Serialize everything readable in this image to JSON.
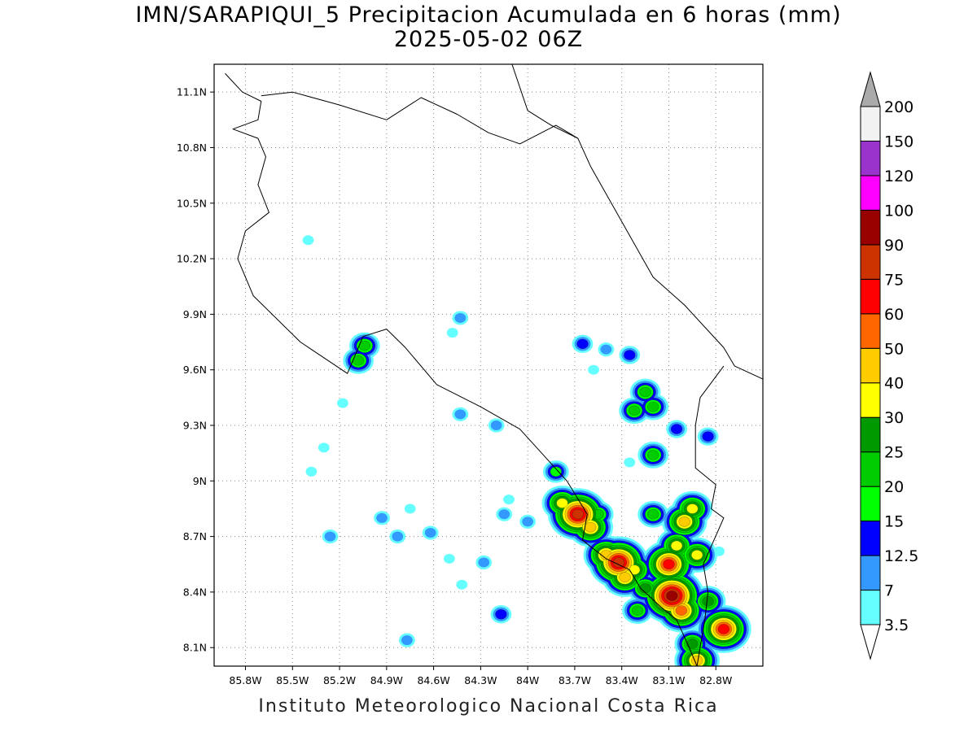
{
  "title": {
    "line1": "IMN/SARAPIQUI_5 Precipitacion Acumulada en 6 horas (mm)",
    "line2": "2025-05-02 06Z"
  },
  "footer": "Instituto Meteorologico Nacional Costa Rica",
  "map": {
    "lon_range": [
      -86.0,
      -82.5
    ],
    "lat_range": [
      8.0,
      11.25
    ],
    "lon_ticks": [
      {
        "value": -85.8,
        "label": "85.8W"
      },
      {
        "value": -85.5,
        "label": "85.5W"
      },
      {
        "value": -85.2,
        "label": "85.2W"
      },
      {
        "value": -84.9,
        "label": "84.9W"
      },
      {
        "value": -84.6,
        "label": "84.6W"
      },
      {
        "value": -84.3,
        "label": "84.3W"
      },
      {
        "value": -84.0,
        "label": "84W"
      },
      {
        "value": -83.7,
        "label": "83.7W"
      },
      {
        "value": -83.4,
        "label": "83.4W"
      },
      {
        "value": -83.1,
        "label": "83.1W"
      },
      {
        "value": -82.8,
        "label": "82.8W"
      }
    ],
    "lat_ticks": [
      {
        "value": 8.1,
        "label": "8.1N"
      },
      {
        "value": 8.4,
        "label": "8.4N"
      },
      {
        "value": 8.7,
        "label": "8.7N"
      },
      {
        "value": 9.0,
        "label": "9N"
      },
      {
        "value": 9.3,
        "label": "9.3N"
      },
      {
        "value": 9.6,
        "label": "9.6N"
      },
      {
        "value": 9.9,
        "label": "9.9N"
      },
      {
        "value": 10.2,
        "label": "10.2N"
      },
      {
        "value": 10.5,
        "label": "10.5N"
      },
      {
        "value": 10.8,
        "label": "10.8N"
      },
      {
        "value": 11.1,
        "label": "11.1N"
      }
    ],
    "grid": "dotted",
    "coastline": [
      {
        "lon": -85.93,
        "lat": 11.2
      },
      {
        "lon": -85.82,
        "lat": 11.1
      },
      {
        "lon": -85.7,
        "lat": 11.05
      },
      {
        "lon": -85.72,
        "lat": 10.95
      },
      {
        "lon": -85.88,
        "lat": 10.9
      },
      {
        "lon": -85.72,
        "lat": 10.85
      },
      {
        "lon": -85.67,
        "lat": 10.75
      },
      {
        "lon": -85.72,
        "lat": 10.6
      },
      {
        "lon": -85.65,
        "lat": 10.45
      },
      {
        "lon": -85.8,
        "lat": 10.35
      },
      {
        "lon": -85.85,
        "lat": 10.2
      },
      {
        "lon": -85.75,
        "lat": 10.0
      },
      {
        "lon": -85.45,
        "lat": 9.75
      },
      {
        "lon": -85.15,
        "lat": 9.58
      },
      {
        "lon": -85.05,
        "lat": 9.78
      },
      {
        "lon": -84.9,
        "lat": 9.82
      },
      {
        "lon": -84.78,
        "lat": 9.72
      },
      {
        "lon": -84.58,
        "lat": 9.52
      },
      {
        "lon": -84.3,
        "lat": 9.4
      },
      {
        "lon": -84.05,
        "lat": 9.28
      },
      {
        "lon": -83.75,
        "lat": 9.0
      },
      {
        "lon": -83.62,
        "lat": 8.82
      },
      {
        "lon": -83.65,
        "lat": 8.68
      },
      {
        "lon": -83.5,
        "lat": 8.58
      },
      {
        "lon": -83.35,
        "lat": 8.52
      },
      {
        "lon": -83.28,
        "lat": 8.42
      },
      {
        "lon": -83.15,
        "lat": 8.32
      },
      {
        "lon": -83.05,
        "lat": 8.25
      },
      {
        "lon": -82.97,
        "lat": 8.1
      },
      {
        "lon": -82.92,
        "lat": 8.0
      }
    ],
    "caribbean_coast": [
      {
        "lon": -84.1,
        "lat": 11.25
      },
      {
        "lon": -84.0,
        "lat": 11.0
      },
      {
        "lon": -83.85,
        "lat": 10.92
      },
      {
        "lon": -83.68,
        "lat": 10.85
      },
      {
        "lon": -83.6,
        "lat": 10.7
      },
      {
        "lon": -83.4,
        "lat": 10.4
      },
      {
        "lon": -83.2,
        "lat": 10.1
      },
      {
        "lon": -83.0,
        "lat": 9.95
      },
      {
        "lon": -82.75,
        "lat": 9.72
      },
      {
        "lon": -82.68,
        "lat": 9.62
      },
      {
        "lon": -82.5,
        "lat": 9.55
      }
    ],
    "nicaragua_border": [
      {
        "lon": -85.7,
        "lat": 11.08
      },
      {
        "lon": -85.5,
        "lat": 11.1
      },
      {
        "lon": -85.2,
        "lat": 11.03
      },
      {
        "lon": -84.9,
        "lat": 10.95
      },
      {
        "lon": -84.68,
        "lat": 11.07
      },
      {
        "lon": -84.45,
        "lat": 10.98
      },
      {
        "lon": -84.25,
        "lat": 10.88
      },
      {
        "lon": -84.05,
        "lat": 10.82
      },
      {
        "lon": -83.82,
        "lat": 10.92
      },
      {
        "lon": -83.68,
        "lat": 10.85
      }
    ],
    "panama_border": [
      {
        "lon": -82.75,
        "lat": 9.62
      },
      {
        "lon": -82.9,
        "lat": 9.45
      },
      {
        "lon": -82.93,
        "lat": 9.3
      },
      {
        "lon": -82.93,
        "lat": 9.07
      },
      {
        "lon": -82.8,
        "lat": 8.98
      },
      {
        "lon": -82.83,
        "lat": 8.85
      },
      {
        "lon": -82.75,
        "lat": 8.8
      },
      {
        "lon": -82.88,
        "lat": 8.55
      },
      {
        "lon": -82.85,
        "lat": 8.4
      },
      {
        "lon": -82.87,
        "lat": 8.25
      },
      {
        "lon": -82.92,
        "lat": 8.0
      }
    ],
    "precip_cells": [
      {
        "lon": -83.68,
        "lat": 8.82,
        "mm": 75
      },
      {
        "lon": -83.6,
        "lat": 8.75,
        "mm": 40
      },
      {
        "lon": -83.78,
        "lat": 8.88,
        "mm": 30
      },
      {
        "lon": -83.5,
        "lat": 8.6,
        "mm": 40
      },
      {
        "lon": -83.42,
        "lat": 8.56,
        "mm": 75
      },
      {
        "lon": -83.32,
        "lat": 8.52,
        "mm": 30
      },
      {
        "lon": -83.38,
        "lat": 8.48,
        "mm": 40
      },
      {
        "lon": -83.1,
        "lat": 8.55,
        "mm": 60
      },
      {
        "lon": -83.08,
        "lat": 8.38,
        "mm": 90
      },
      {
        "lon": -83.02,
        "lat": 8.3,
        "mm": 50
      },
      {
        "lon": -83.05,
        "lat": 8.65,
        "mm": 30
      },
      {
        "lon": -83.0,
        "lat": 8.78,
        "mm": 40
      },
      {
        "lon": -82.95,
        "lat": 8.85,
        "mm": 30
      },
      {
        "lon": -82.92,
        "lat": 8.6,
        "mm": 30
      },
      {
        "lon": -82.75,
        "lat": 8.2,
        "mm": 60
      },
      {
        "lon": -82.85,
        "lat": 8.35,
        "mm": 25
      },
      {
        "lon": -82.95,
        "lat": 8.12,
        "mm": 25
      },
      {
        "lon": -82.92,
        "lat": 8.03,
        "mm": 40
      },
      {
        "lon": -83.25,
        "lat": 8.42,
        "mm": 25
      },
      {
        "lon": -83.3,
        "lat": 8.3,
        "mm": 20
      },
      {
        "lon": -83.55,
        "lat": 8.82,
        "mm": 20
      },
      {
        "lon": -83.2,
        "lat": 8.82,
        "mm": 20
      },
      {
        "lon": -83.82,
        "lat": 9.05,
        "mm": 15
      },
      {
        "lon": -83.25,
        "lat": 9.48,
        "mm": 20
      },
      {
        "lon": -83.32,
        "lat": 9.38,
        "mm": 20
      },
      {
        "lon": -83.2,
        "lat": 9.4,
        "mm": 20
      },
      {
        "lon": -83.05,
        "lat": 9.28,
        "mm": 12.5
      },
      {
        "lon": -82.85,
        "lat": 9.24,
        "mm": 12.5
      },
      {
        "lon": -83.2,
        "lat": 9.14,
        "mm": 20
      },
      {
        "lon": -83.35,
        "lat": 9.68,
        "mm": 12.5
      },
      {
        "lon": -83.65,
        "lat": 9.74,
        "mm": 12.5
      },
      {
        "lon": -83.5,
        "lat": 9.71,
        "mm": 7
      },
      {
        "lon": -85.04,
        "lat": 9.73,
        "mm": 20
      },
      {
        "lon": -85.08,
        "lat": 9.65,
        "mm": 20
      },
      {
        "lon": -85.4,
        "lat": 10.3,
        "mm": 3.5
      },
      {
        "lon": -84.43,
        "lat": 9.88,
        "mm": 7
      },
      {
        "lon": -84.48,
        "lat": 9.8,
        "mm": 3.5
      },
      {
        "lon": -84.2,
        "lat": 9.3,
        "mm": 7
      },
      {
        "lon": -84.43,
        "lat": 9.36,
        "mm": 7
      },
      {
        "lon": -84.17,
        "lat": 8.28,
        "mm": 12.5
      },
      {
        "lon": -84.28,
        "lat": 8.56,
        "mm": 7
      },
      {
        "lon": -84.5,
        "lat": 8.58,
        "mm": 3.5
      },
      {
        "lon": -84.42,
        "lat": 8.44,
        "mm": 3.5
      },
      {
        "lon": -85.18,
        "lat": 9.42,
        "mm": 3.5
      },
      {
        "lon": -85.3,
        "lat": 9.18,
        "mm": 3.5
      },
      {
        "lon": -85.38,
        "lat": 9.05,
        "mm": 3.5
      },
      {
        "lon": -85.26,
        "lat": 8.7,
        "mm": 7
      },
      {
        "lon": -84.93,
        "lat": 8.8,
        "mm": 7
      },
      {
        "lon": -84.83,
        "lat": 8.7,
        "mm": 7
      },
      {
        "lon": -84.62,
        "lat": 8.72,
        "mm": 7
      },
      {
        "lon": -84.75,
        "lat": 8.85,
        "mm": 3.5
      },
      {
        "lon": -84.77,
        "lat": 8.14,
        "mm": 7
      },
      {
        "lon": -84.15,
        "lat": 8.82,
        "mm": 7
      },
      {
        "lon": -84.0,
        "lat": 8.78,
        "mm": 7
      },
      {
        "lon": -83.58,
        "lat": 9.6,
        "mm": 3.5
      },
      {
        "lon": -82.78,
        "lat": 8.62,
        "mm": 3.5
      },
      {
        "lon": -84.12,
        "lat": 8.9,
        "mm": 3.5
      },
      {
        "lon": -83.35,
        "lat": 9.1,
        "mm": 3.5
      }
    ]
  },
  "colorbar": {
    "levels": [
      "3.5",
      "7",
      "12.5",
      "15",
      "20",
      "25",
      "30",
      "40",
      "50",
      "60",
      "75",
      "90",
      "100",
      "120",
      "150",
      "200"
    ],
    "colors": [
      "#66ffff",
      "#3399ff",
      "#0000ff",
      "#00ff00",
      "#00cc00",
      "#009900",
      "#ffff00",
      "#ffcc00",
      "#ff6600",
      "#ff0000",
      "#cc3300",
      "#990000",
      "#ff00ff",
      "#9933cc",
      "#f2f2f2",
      "#aaaaaa"
    ]
  }
}
